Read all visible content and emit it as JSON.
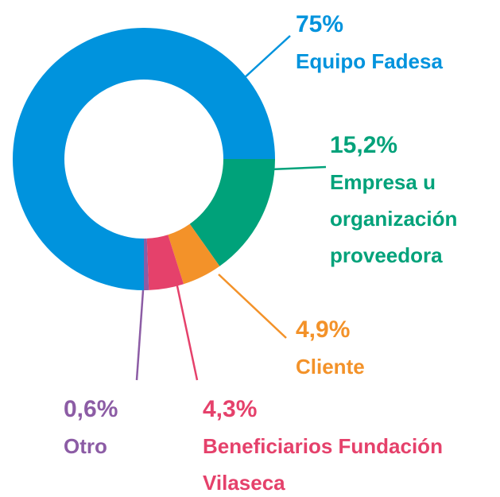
{
  "chart_data": {
    "type": "donut",
    "categories": [
      "Equipo Fadesa",
      "Empresa u organización proveedora",
      "Cliente",
      "Beneficiarios Fundación Vilaseca",
      "Otro"
    ],
    "values": [
      75,
      15.2,
      4.9,
      4.3,
      0.6
    ],
    "value_labels": [
      "75%",
      "15,2%",
      "4,9%",
      "4,3%",
      "0,6%"
    ],
    "colors": [
      "#0093dd",
      "#00a27a",
      "#f39229",
      "#e5416b",
      "#8c5ca5"
    ]
  }
}
